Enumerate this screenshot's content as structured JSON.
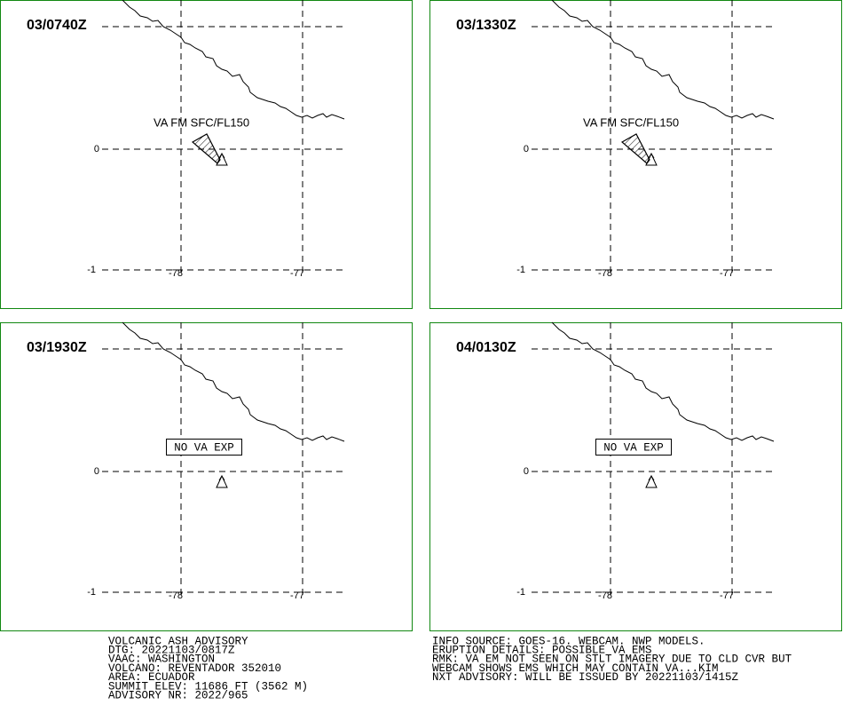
{
  "panels": [
    {
      "time": "03/0740Z",
      "annotation": "VA FM SFC/FL150",
      "ash": true
    },
    {
      "time": "03/1330Z",
      "annotation": "VA FM SFC/FL150",
      "ash": true
    },
    {
      "time": "03/1930Z",
      "annotation": "NO VA EXP",
      "ash": false
    },
    {
      "time": "04/0130Z",
      "annotation": "NO VA EXP",
      "ash": false
    }
  ],
  "map": {
    "lat_labels": [
      "0",
      "-1"
    ],
    "lon_labels": [
      "-78",
      "-77"
    ]
  },
  "advisory_left": [
    "VOLCANIC ASH ADVISORY",
    "DTG: 20221103/0817Z",
    "VAAC: WASHINGTON",
    "VOLCANO: REVENTADOR 352010",
    "AREA: ECUADOR",
    "SUMMIT ELEV: 11686 FT (3562 M)",
    "ADVISORY NR: 2022/965"
  ],
  "advisory_right": [
    "INFO SOURCE: GOES-16. WEBCAM. NWP MODELS.",
    "ERUPTION DETAILS: POSSIBLE VA EMS",
    "RMK: VA EM NOT SEEN ON STLT IMAGERY DUE TO CLD CVR BUT",
    "WEBCAM SHOWS EMS WHICH MAY CONTAIN VA...KIM",
    "NXT ADVISORY: WILL BE ISSUED BY 20221103/1415Z"
  ]
}
